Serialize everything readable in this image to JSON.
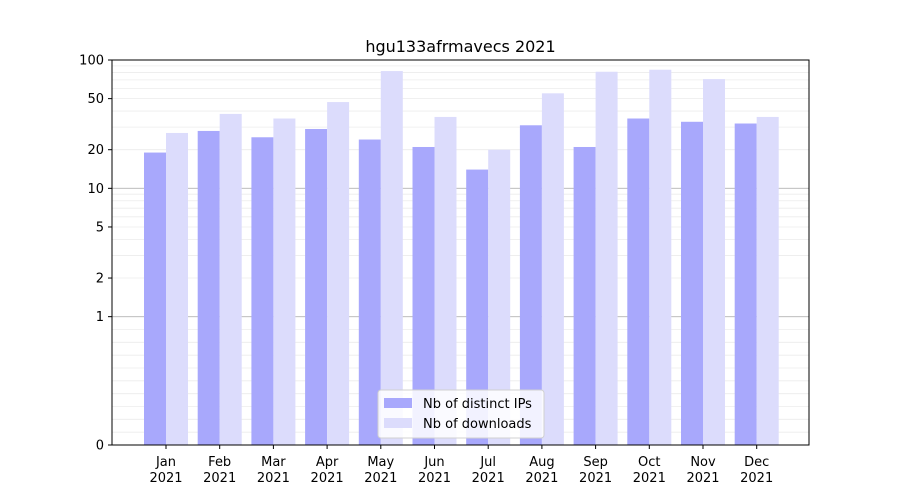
{
  "chart_data": {
    "type": "bar",
    "title": "hgu133afrmavecs 2021",
    "xlabel": "",
    "ylabel": "",
    "yscale": "symlog",
    "ylim": [
      0,
      100
    ],
    "yticks": [
      0,
      1,
      2,
      5,
      10,
      20,
      50,
      100
    ],
    "grid": true,
    "legend_position": "bottom-center",
    "categories": [
      [
        "Jan",
        "2021"
      ],
      [
        "Feb",
        "2021"
      ],
      [
        "Mar",
        "2021"
      ],
      [
        "Apr",
        "2021"
      ],
      [
        "May",
        "2021"
      ],
      [
        "Jun",
        "2021"
      ],
      [
        "Jul",
        "2021"
      ],
      [
        "Aug",
        "2021"
      ],
      [
        "Sep",
        "2021"
      ],
      [
        "Oct",
        "2021"
      ],
      [
        "Nov",
        "2021"
      ],
      [
        "Dec",
        "2021"
      ]
    ],
    "series": [
      {
        "name": "Nb of distinct IPs",
        "color": "#a8a8fc",
        "values": [
          19,
          28,
          25,
          29,
          24,
          21,
          14,
          31,
          21,
          35,
          33,
          32
        ]
      },
      {
        "name": "Nb of downloads",
        "color": "#dcdcfc",
        "values": [
          27,
          38,
          35,
          47,
          82,
          36,
          20,
          55,
          81,
          84,
          71,
          36
        ]
      }
    ]
  }
}
